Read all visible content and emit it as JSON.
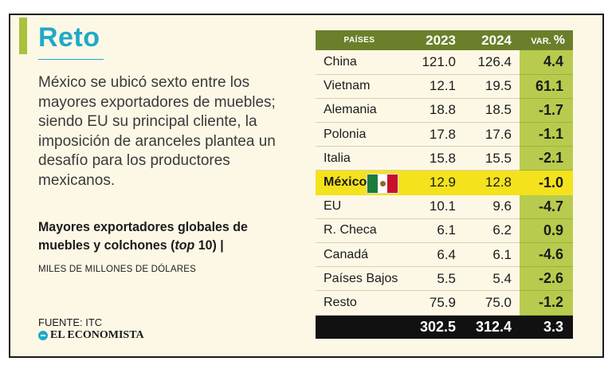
{
  "header": {
    "title": "Reto",
    "intro": "México se ubicó sexto entre los mayores exportadores de muebles; siendo EU su principal cliente, la imposición de aranceles plantea un desafío para los productores mexicanos."
  },
  "chart_meta": {
    "title_part1": "Mayores exportadores globales de muebles y colchones (",
    "title_em": "top",
    "title_part2": " 10) |",
    "units": "MILES DE MILLONES DE DÓLARES",
    "source": "FUENTE: ITC",
    "brand": "EL ECONOMISTA"
  },
  "colors": {
    "accent_green": "#a8c23b",
    "header_green": "#6b7f2a",
    "title_blue": "#1ea9c9",
    "highlight_yellow": "#f3e21c"
  },
  "chart_data": {
    "type": "table",
    "columns": [
      "PAÍSES",
      "2023",
      "2024",
      "VAR. %"
    ],
    "rows": [
      {
        "country": "China",
        "y2023": "121.0",
        "y2024": "126.4",
        "var": "4.4"
      },
      {
        "country": "Vietnam",
        "y2023": "12.1",
        "y2024": "19.5",
        "var": "61.1"
      },
      {
        "country": "Alemania",
        "y2023": "18.8",
        "y2024": "18.5",
        "var": "-1.7"
      },
      {
        "country": "Polonia",
        "y2023": "17.8",
        "y2024": "17.6",
        "var": "-1.1"
      },
      {
        "country": "Italia",
        "y2023": "15.8",
        "y2024": "15.5",
        "var": "-2.1"
      },
      {
        "country": "México",
        "y2023": "12.9",
        "y2024": "12.8",
        "var": "-1.0",
        "highlight": true
      },
      {
        "country": "EU",
        "y2023": "10.1",
        "y2024": "9.6",
        "var": "-4.7"
      },
      {
        "country": "R. Checa",
        "y2023": "6.1",
        "y2024": "6.2",
        "var": "0.9"
      },
      {
        "country": "Canadá",
        "y2023": "6.4",
        "y2024": "6.1",
        "var": "-4.6"
      },
      {
        "country": "Países Bajos",
        "y2023": "5.5",
        "y2024": "5.4",
        "var": "-2.6"
      },
      {
        "country": "Resto",
        "y2023": "75.9",
        "y2024": "75.0",
        "var": "-1.2"
      }
    ],
    "total": {
      "y2023": "302.5",
      "y2024": "312.4",
      "var": "3.3"
    }
  }
}
